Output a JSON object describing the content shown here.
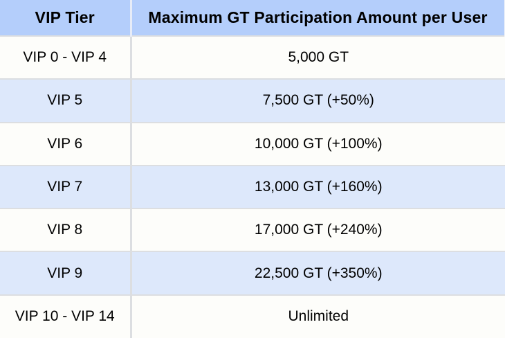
{
  "chart_data": {
    "type": "table",
    "columns": [
      "VIP Tier",
      "Maximum GT Participation Amount per User"
    ],
    "rows": [
      [
        "VIP 0 - VIP 4",
        "5,000 GT"
      ],
      [
        "VIP 5",
        "7,500 GT (+50%)"
      ],
      [
        "VIP 6",
        "10,000 GT (+100%)"
      ],
      [
        "VIP 7",
        "13,000 GT (+160%)"
      ],
      [
        "VIP 8",
        "17,000 GT (+240%)"
      ],
      [
        "VIP 9",
        "22,500 GT (+350%)"
      ],
      [
        "VIP 10 - VIP 14",
        "Unlimited"
      ]
    ],
    "layout_hints": {
      "header_style": "bold",
      "row_striping": "white and light blue alternating",
      "text_align": "center"
    }
  },
  "colors": {
    "header_bg": "#b4cefb",
    "row_bg": "#fdfdfa",
    "row_alt_bg": "#dde8fb",
    "border": "#dcdee1",
    "header_divider": "#e7ecf7",
    "text": "#000000"
  }
}
